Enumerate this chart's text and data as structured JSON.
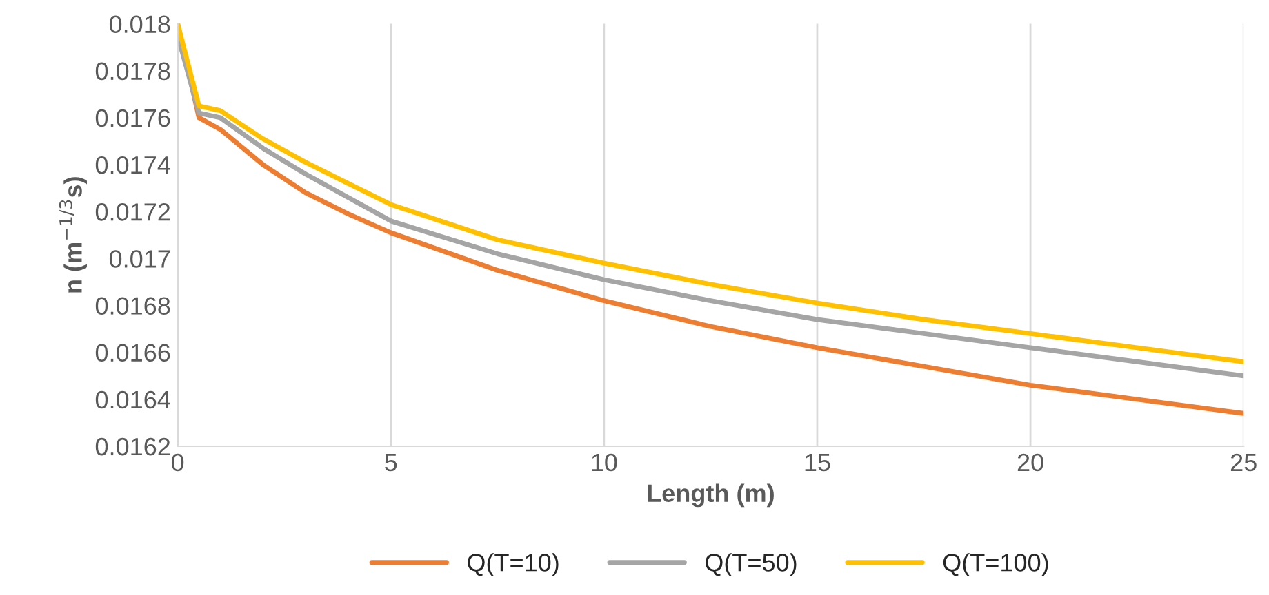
{
  "chart_data": {
    "type": "line",
    "xlabel": "Length (m)",
    "ylabel": "n (m$^{−1/3}$s)",
    "xlim": [
      0,
      25
    ],
    "xticks": [
      0,
      5,
      10,
      15,
      20,
      25
    ],
    "ylim": [
      0.0162,
      0.018
    ],
    "yticks": [
      0.0162,
      0.0164,
      0.0166,
      0.0168,
      0.017,
      0.0172,
      0.0174,
      0.0176,
      0.0178,
      0.018
    ],
    "grid": "x",
    "legend": "bottom",
    "marker": "none",
    "line_style": "solid",
    "x": [
      0,
      0.5,
      1,
      2,
      3,
      4,
      5,
      7.5,
      10,
      12.5,
      15,
      17.5,
      20,
      22.5,
      25
    ],
    "series": [
      {
        "name": "Q(T=10)",
        "color": "#ed7d31",
        "values": [
          0.018,
          0.0176,
          0.01755,
          0.0174,
          0.01728,
          0.01719,
          0.01711,
          0.01695,
          0.01682,
          0.01671,
          0.01662,
          0.01654,
          0.01646,
          0.0164,
          0.01634
        ]
      },
      {
        "name": "Q(T=50)",
        "color": "#a5a5a5",
        "values": [
          0.01795,
          0.01762,
          0.0176,
          0.01747,
          0.01736,
          0.01726,
          0.01716,
          0.01702,
          0.01691,
          0.01682,
          0.01674,
          0.01668,
          0.01662,
          0.01656,
          0.0165
        ]
      },
      {
        "name": "Q(T=100)",
        "color": "#ffc000",
        "values": [
          0.018,
          0.01765,
          0.01763,
          0.01751,
          0.01741,
          0.01732,
          0.01723,
          0.01708,
          0.01698,
          0.01689,
          0.01681,
          0.01674,
          0.01668,
          0.01662,
          0.01656
        ]
      }
    ]
  }
}
